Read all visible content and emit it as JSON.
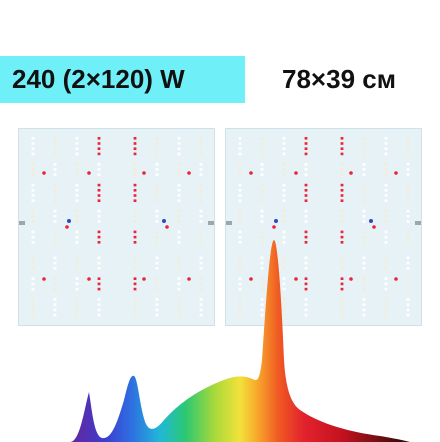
{
  "product": {
    "power_label": "240 (2×120) W",
    "size_label": "78×39 см"
  },
  "panels": [
    {
      "id": "left"
    },
    {
      "id": "right"
    }
  ],
  "colors": {
    "badge_bg": "#6ff0f8",
    "board_bg": "#e7f2f7",
    "led_white": "#ffffff",
    "led_warm": "#f3ecd6",
    "led_red": "#e8263a",
    "led_blue": "#3346c8"
  }
}
